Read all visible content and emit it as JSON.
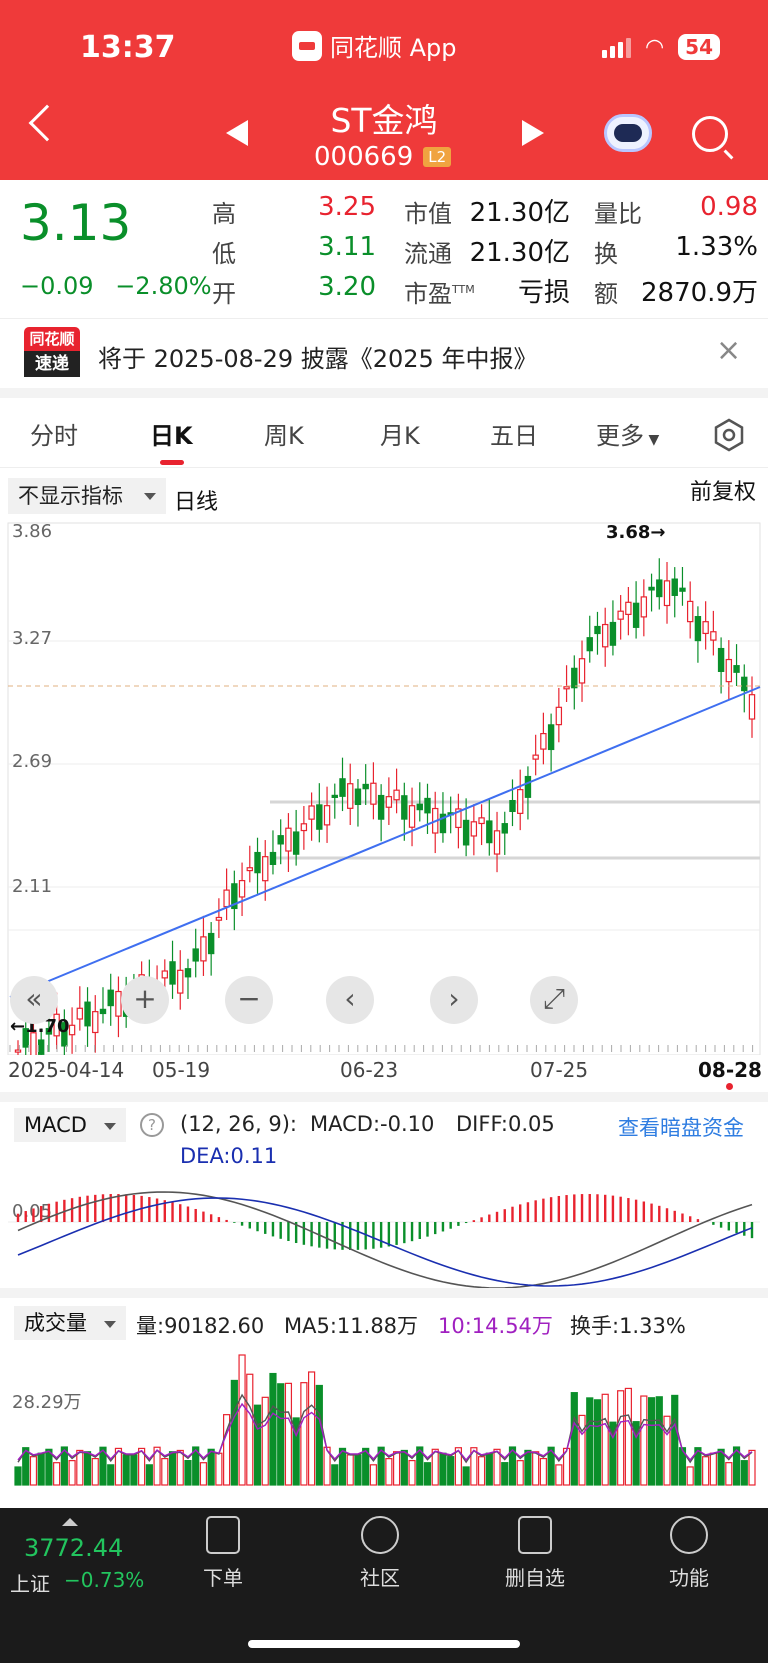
{
  "status": {
    "time": "13:37",
    "app_name": "同花顺 App",
    "battery": "54"
  },
  "header": {
    "stock_name": "ST金鸿",
    "stock_code": "000669",
    "level_badge": "L2"
  },
  "quote": {
    "price": "3.13",
    "change": "−0.09",
    "change_pct": "−2.80%",
    "high_label": "高",
    "high": "3.25",
    "low_label": "低",
    "low": "3.11",
    "open_label": "开",
    "open": "3.20",
    "mktcap_label": "市值",
    "mktcap": "21.30亿",
    "float_label": "流通",
    "float": "21.30亿",
    "pe_label": "市盈",
    "pe_sup": "TTM",
    "pe": "亏损",
    "vol_ratio_label": "量比",
    "vol_ratio": "0.98",
    "turnover_label": "换",
    "turnover": "1.33%",
    "amount_label": "额",
    "amount": "2870.9万"
  },
  "notice": {
    "logo_top": "同花顺",
    "logo_bottom": "速递",
    "text": "将于 2025-08-29 披露《2025 年中报》",
    "close": "×"
  },
  "tabs": [
    "分时",
    "日K",
    "周K",
    "月K",
    "五日",
    "更多"
  ],
  "kline": {
    "indicator_select": "不显示指标",
    "period": "日线",
    "adjust": "前复权",
    "y_labels": [
      "3.86",
      "3.27",
      "2.69",
      "2.11"
    ],
    "high_marker": "3.68→",
    "low_marker": "←1.70",
    "dates": [
      "2025-04-14",
      "05-19",
      "06-23",
      "07-25",
      "08-28"
    ],
    "controls": [
      "«",
      "+",
      "−",
      "‹",
      "›",
      "⤢"
    ]
  },
  "macd": {
    "select": "MACD",
    "params": "(12, 26, 9):",
    "macd": "MACD:-0.10",
    "diff": "DIFF:0.05",
    "dea": "DEA:0.11",
    "link": "查看暗盘资金",
    "level": "0.05"
  },
  "volume": {
    "select": "成交量",
    "vol": "量:90182.60",
    "ma5": "MA5:11.88万",
    "ma10": "10:14.54万",
    "turn": "换手:1.33%",
    "level": "28.29万"
  },
  "bottom": {
    "index_value": "3772.44",
    "index_name": "上证",
    "index_change": "−0.73%",
    "items": [
      "下单",
      "社区",
      "删自选",
      "功能"
    ]
  },
  "colors": {
    "header": "#ef3a3a",
    "up": "#e8232f",
    "down": "#0a8f2a",
    "trend": "#3f6ff0"
  },
  "chart_data": {
    "type": "candlestick",
    "ylim": [
      1.7,
      3.86
    ],
    "high": 3.68,
    "low": 1.7,
    "x_ticks": [
      "2025-04-14",
      "05-19",
      "06-23",
      "07-25",
      "08-28"
    ],
    "last_close": 3.13,
    "macd": {
      "macd": -0.1,
      "diff": 0.05,
      "dea": 0.11
    },
    "volume": {
      "last": 90182.6,
      "ma5": "11.88万",
      "ma10": "14.54万"
    }
  }
}
